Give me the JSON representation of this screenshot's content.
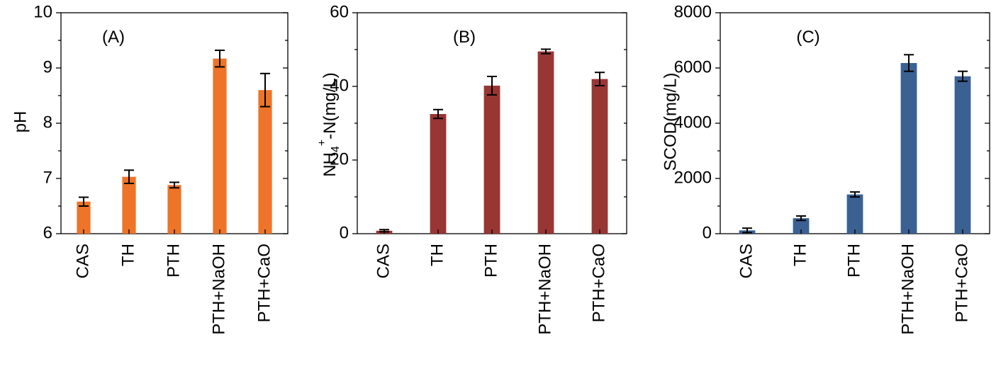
{
  "chart_data": [
    {
      "type": "bar",
      "panel_label": "(A)",
      "ylabel": "pH",
      "ylim": [
        6,
        10
      ],
      "yticks": [
        "6",
        "7",
        "8",
        "9",
        "10"
      ],
      "categories": [
        "CAS",
        "TH",
        "PTH",
        "PTH+NaOH",
        "PTH+CaO"
      ],
      "values": [
        6.58,
        7.03,
        6.88,
        9.17,
        8.6
      ],
      "errors": [
        0.08,
        0.12,
        0.05,
        0.15,
        0.3
      ],
      "color": "#ED7428",
      "grid": false,
      "legend": "none"
    },
    {
      "type": "bar",
      "panel_label": "(B)",
      "ylabel": "NH4+-N(mg/L)",
      "ylabel_parts": {
        "base": "NH",
        "sub": "4",
        "sup": "+",
        "rest": "-N(mg/L)"
      },
      "ylim": [
        0,
        60
      ],
      "yticks": [
        "0",
        "20",
        "40",
        "60"
      ],
      "categories": [
        "CAS",
        "TH",
        "PTH",
        "PTH+NaOH",
        "PTH+CaO"
      ],
      "values": [
        0.8,
        32.5,
        40.2,
        49.5,
        42.0
      ],
      "errors": [
        0.3,
        1.2,
        2.5,
        0.6,
        1.8
      ],
      "color": "#983634",
      "grid": false,
      "legend": "none"
    },
    {
      "type": "bar",
      "panel_label": "(C)",
      "ylabel": "SCOD(mg/L)",
      "ylim": [
        0,
        8000
      ],
      "yticks": [
        "0",
        "2000",
        "4000",
        "6000",
        "8000"
      ],
      "categories": [
        "CAS",
        "TH",
        "PTH",
        "PTH+NaOH",
        "PTH+CaO"
      ],
      "values": [
        120,
        560,
        1420,
        6180,
        5700
      ],
      "errors": [
        80,
        80,
        90,
        300,
        180
      ],
      "color": "#3A6192",
      "grid": false,
      "legend": "none"
    }
  ]
}
